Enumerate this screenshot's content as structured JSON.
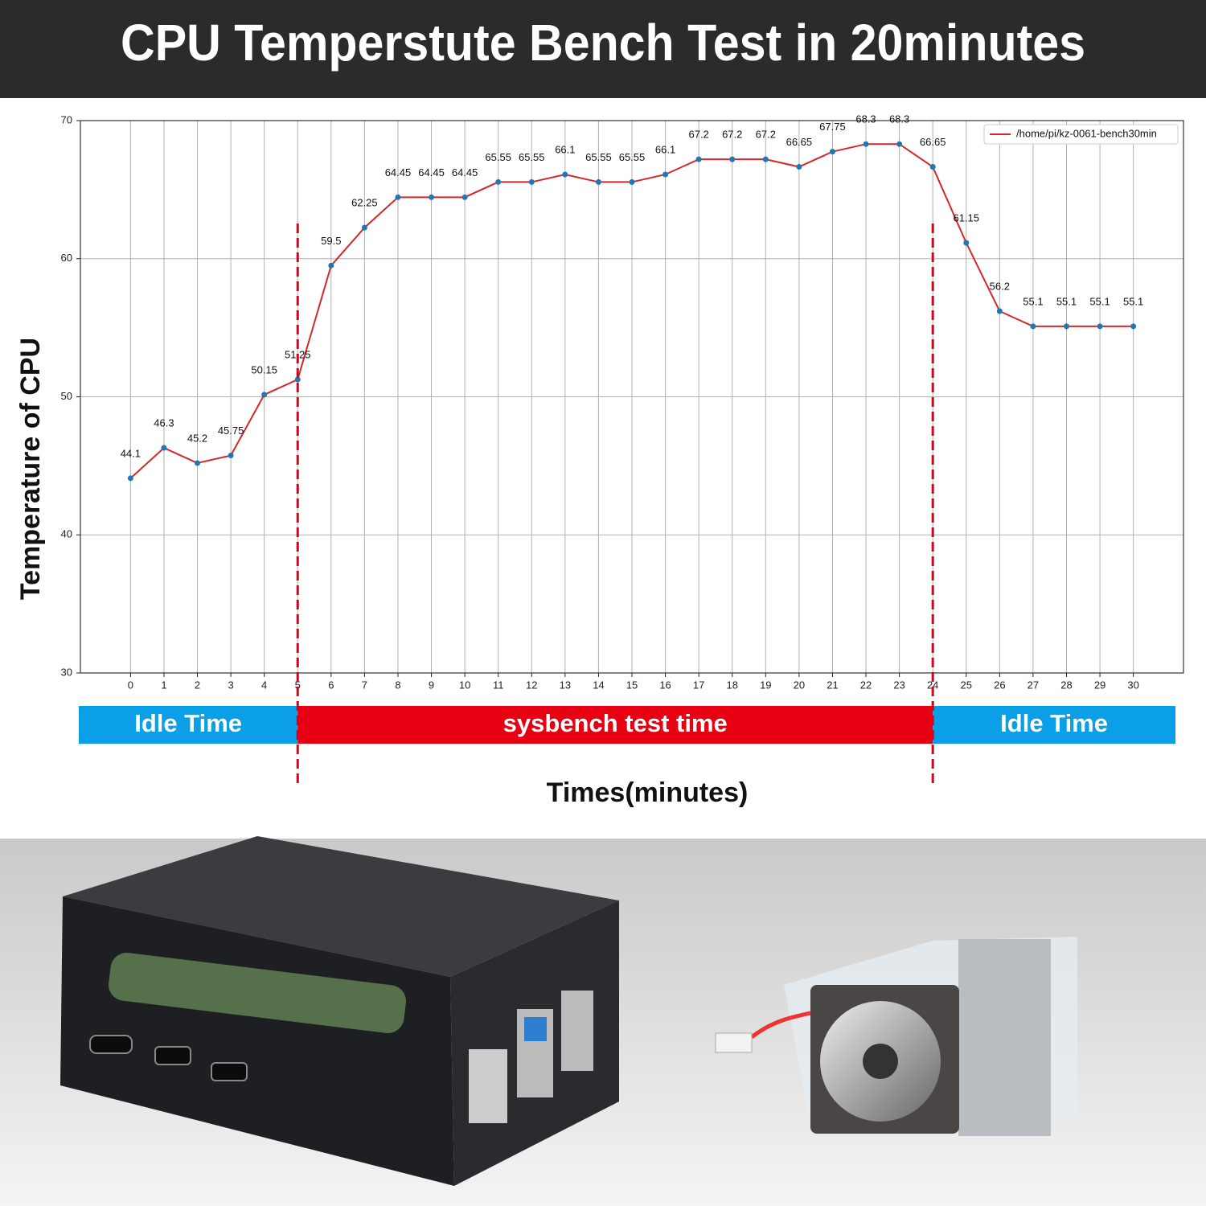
{
  "chart_data": {
    "type": "line",
    "title": "CPU Temperstute Bench Test in 20minutes",
    "ylabel": "Temperature of CPU",
    "xlabel": "Times(minutes)",
    "x": [
      0,
      1,
      2,
      3,
      4,
      5,
      6,
      7,
      8,
      9,
      10,
      11,
      12,
      13,
      14,
      15,
      16,
      17,
      18,
      19,
      20,
      21,
      22,
      23,
      24,
      25,
      26,
      27,
      28,
      29,
      30
    ],
    "series": [
      {
        "name": "/home/pi/kz-0061-bench30min",
        "color": "#d62728",
        "marker_color": "#1f77b4",
        "values": [
          44.1,
          46.3,
          45.2,
          45.75,
          50.15,
          51.25,
          59.5,
          62.25,
          64.45,
          64.45,
          64.45,
          65.55,
          65.55,
          66.1,
          65.55,
          65.55,
          66.1,
          67.2,
          67.2,
          67.2,
          66.65,
          67.75,
          68.3,
          68.3,
          66.65,
          61.15,
          56.2,
          55.1,
          55.1,
          55.1,
          55.1
        ]
      }
    ],
    "xlim": [
      -1.5,
      31.5
    ],
    "ylim": [
      30,
      70
    ],
    "xticks": [
      0,
      1,
      2,
      3,
      4,
      5,
      6,
      7,
      8,
      9,
      10,
      11,
      12,
      13,
      14,
      15,
      16,
      17,
      18,
      19,
      20,
      21,
      22,
      23,
      24,
      25,
      26,
      27,
      28,
      29,
      30
    ],
    "yticks": [
      30,
      40,
      50,
      60,
      70
    ],
    "grid": true,
    "legend": "upper right",
    "markers": [
      5,
      24
    ],
    "phases": [
      {
        "label": "Idle Time",
        "color": "#0a9fe6"
      },
      {
        "label": "sysbench test time",
        "color": "#e60012"
      },
      {
        "label": "Idle Time",
        "color": "#0a9fe6"
      }
    ]
  }
}
